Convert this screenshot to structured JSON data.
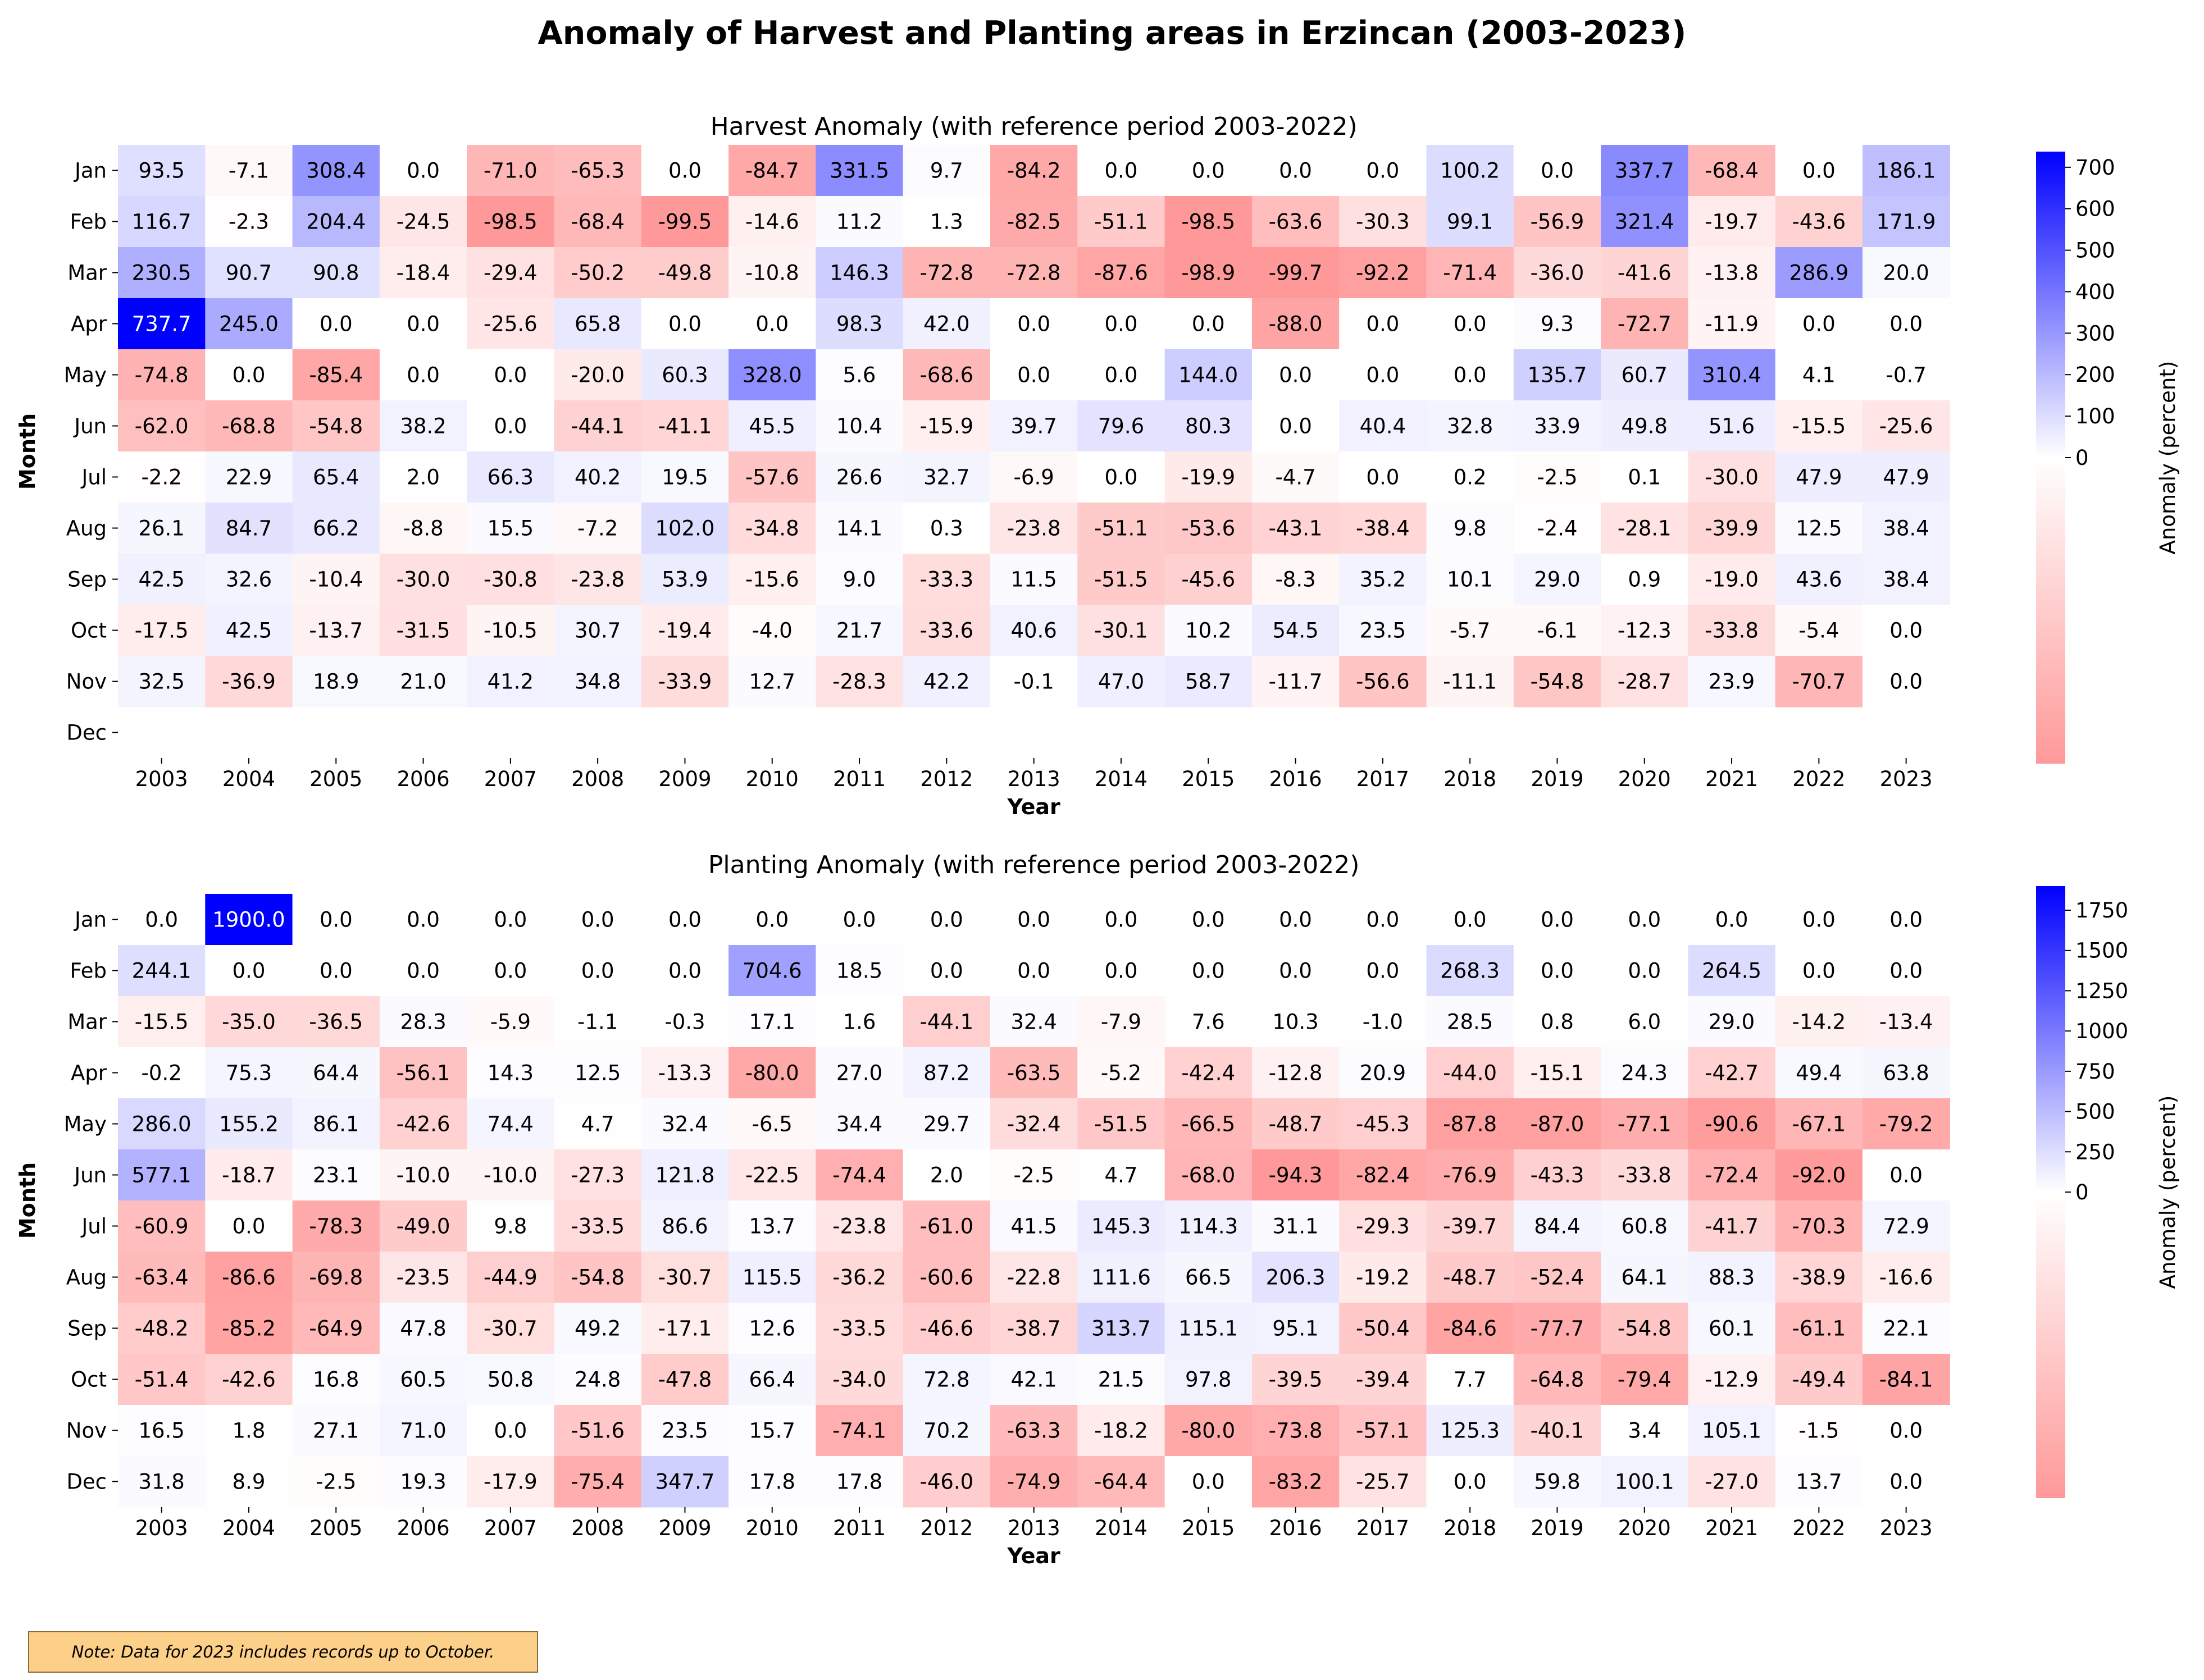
{
  "figure": {
    "title": "Anomaly of Harvest and Planting areas in Erzincan (2003-2023)",
    "note": "Note: Data for 2023 includes records up to October."
  },
  "chart_data": [
    {
      "type": "heatmap",
      "title": "Harvest Anomaly (with reference period 2003-2022)",
      "xlabel": "Year",
      "ylabel": "Month",
      "colorbar_label": "Anomaly (percent)",
      "colormap": [
        "#ff9999",
        "#ffffff",
        "#0000ff"
      ],
      "colorbar_range": [
        -98.9,
        737.7
      ],
      "colorbar_ticks": [
        0,
        100,
        200,
        300,
        400,
        500,
        600,
        700
      ],
      "x": [
        "2003",
        "2004",
        "2005",
        "2006",
        "2007",
        "2008",
        "2009",
        "2010",
        "2011",
        "2012",
        "2013",
        "2014",
        "2015",
        "2016",
        "2017",
        "2018",
        "2019",
        "2020",
        "2021",
        "2022",
        "2023"
      ],
      "y": [
        "Jan",
        "Feb",
        "Mar",
        "Apr",
        "May",
        "Jun",
        "Jul",
        "Aug",
        "Sep",
        "Oct",
        "Nov",
        "Dec"
      ],
      "values": [
        [
          93.5,
          -7.1,
          308.4,
          0.0,
          -71.0,
          -65.3,
          0.0,
          -84.7,
          331.5,
          9.7,
          -84.2,
          0.0,
          0.0,
          0.0,
          0.0,
          100.2,
          0.0,
          337.7,
          -68.4,
          0.0,
          186.1
        ],
        [
          116.7,
          -2.3,
          204.4,
          -24.5,
          -98.5,
          -68.4,
          -99.5,
          -14.6,
          11.2,
          1.3,
          -82.5,
          -51.1,
          -98.5,
          -63.6,
          -30.3,
          99.1,
          -56.9,
          321.4,
          -19.7,
          -43.6,
          171.9
        ],
        [
          230.5,
          90.7,
          90.8,
          -18.4,
          -29.4,
          -50.2,
          -49.8,
          -10.8,
          146.3,
          -72.8,
          -72.8,
          -87.6,
          -98.9,
          -99.7,
          -92.2,
          -71.4,
          -36.0,
          -41.6,
          -13.8,
          286.9,
          20.0
        ],
        [
          737.7,
          245.0,
          0.0,
          0.0,
          -25.6,
          65.8,
          0.0,
          0.0,
          98.3,
          42.0,
          0.0,
          0.0,
          0.0,
          -88.0,
          0.0,
          0.0,
          9.3,
          -72.7,
          -11.9,
          0.0,
          0.0
        ],
        [
          -74.8,
          0.0,
          -85.4,
          0.0,
          0.0,
          -20.0,
          60.3,
          328.0,
          5.6,
          -68.6,
          0.0,
          0.0,
          144.0,
          0.0,
          0.0,
          0.0,
          135.7,
          60.7,
          310.4,
          4.1,
          -0.7
        ],
        [
          -62.0,
          -68.8,
          -54.8,
          38.2,
          0.0,
          -44.1,
          -41.1,
          45.5,
          10.4,
          -15.9,
          39.7,
          79.6,
          80.3,
          0.0,
          40.4,
          32.8,
          33.9,
          49.8,
          51.6,
          -15.5,
          -25.6
        ],
        [
          -2.2,
          22.9,
          65.4,
          2.0,
          66.3,
          40.2,
          19.5,
          -57.6,
          26.6,
          32.7,
          -6.9,
          0.0,
          -19.9,
          -4.7,
          0.0,
          0.2,
          -2.5,
          0.1,
          -30.0,
          47.9,
          47.9
        ],
        [
          26.1,
          84.7,
          66.2,
          -8.8,
          15.5,
          -7.2,
          102.0,
          -34.8,
          14.1,
          0.3,
          -23.8,
          -51.1,
          -53.6,
          -43.1,
          -38.4,
          9.8,
          -2.4,
          -28.1,
          -39.9,
          12.5,
          38.4
        ],
        [
          42.5,
          32.6,
          -10.4,
          -30.0,
          -30.8,
          -23.8,
          53.9,
          -15.6,
          9.0,
          -33.3,
          11.5,
          -51.5,
          -45.6,
          -8.3,
          35.2,
          10.1,
          29.0,
          0.9,
          -19.0,
          43.6,
          38.4
        ],
        [
          -17.5,
          42.5,
          -13.7,
          -31.5,
          -10.5,
          30.7,
          -19.4,
          -4.0,
          21.7,
          -33.6,
          40.6,
          -30.1,
          10.2,
          54.5,
          23.5,
          -5.7,
          -6.1,
          -12.3,
          -33.8,
          -5.4,
          0.0
        ],
        [
          32.5,
          -36.9,
          18.9,
          21.0,
          41.2,
          34.8,
          -33.9,
          12.7,
          -28.3,
          42.2,
          -0.1,
          47.0,
          58.7,
          -11.7,
          -56.6,
          -11.1,
          -54.8,
          -28.7,
          23.9,
          -70.7,
          0.0
        ],
        [
          null,
          null,
          null,
          null,
          null,
          null,
          null,
          null,
          null,
          null,
          null,
          null,
          null,
          null,
          null,
          null,
          null,
          null,
          null,
          null,
          null
        ]
      ]
    },
    {
      "type": "heatmap",
      "title": "Planting Anomaly (with reference period 2003-2022)",
      "xlabel": "Year",
      "ylabel": "Month",
      "colorbar_label": "Anomaly (percent)",
      "colormap": [
        "#ff9999",
        "#ffffff",
        "#0000ff"
      ],
      "colorbar_range": [
        -94.3,
        1900.0
      ],
      "colorbar_ticks": [
        0,
        250,
        500,
        750,
        1000,
        1250,
        1500,
        1750
      ],
      "x": [
        "2003",
        "2004",
        "2005",
        "2006",
        "2007",
        "2008",
        "2009",
        "2010",
        "2011",
        "2012",
        "2013",
        "2014",
        "2015",
        "2016",
        "2017",
        "2018",
        "2019",
        "2020",
        "2021",
        "2022",
        "2023"
      ],
      "y": [
        "Jan",
        "Feb",
        "Mar",
        "Apr",
        "May",
        "Jun",
        "Jul",
        "Aug",
        "Sep",
        "Oct",
        "Nov",
        "Dec"
      ],
      "values": [
        [
          0.0,
          1900.0,
          0.0,
          0.0,
          0.0,
          0.0,
          0.0,
          0.0,
          0.0,
          0.0,
          0.0,
          0.0,
          0.0,
          0.0,
          0.0,
          0.0,
          0.0,
          0.0,
          0.0,
          0.0,
          0.0
        ],
        [
          244.1,
          0.0,
          0.0,
          0.0,
          0.0,
          0.0,
          0.0,
          704.6,
          18.5,
          0.0,
          0.0,
          0.0,
          0.0,
          0.0,
          0.0,
          268.3,
          0.0,
          0.0,
          264.5,
          0.0,
          0.0
        ],
        [
          -15.5,
          -35.0,
          -36.5,
          28.3,
          -5.9,
          -1.1,
          -0.3,
          17.1,
          1.6,
          -44.1,
          32.4,
          -7.9,
          7.6,
          10.3,
          -1.0,
          28.5,
          0.8,
          6.0,
          29.0,
          -14.2,
          -13.4
        ],
        [
          -0.2,
          75.3,
          64.4,
          -56.1,
          14.3,
          12.5,
          -13.3,
          -80.0,
          27.0,
          87.2,
          -63.5,
          -5.2,
          -42.4,
          -12.8,
          20.9,
          -44.0,
          -15.1,
          24.3,
          -42.7,
          49.4,
          63.8
        ],
        [
          286.0,
          155.2,
          86.1,
          -42.6,
          74.4,
          4.7,
          32.4,
          -6.5,
          34.4,
          29.7,
          -32.4,
          -51.5,
          -66.5,
          -48.7,
          -45.3,
          -87.8,
          -87.0,
          -77.1,
          -90.6,
          -67.1,
          -79.2
        ],
        [
          577.1,
          -18.7,
          23.1,
          -10.0,
          -10.0,
          -27.3,
          121.8,
          -22.5,
          -74.4,
          2.0,
          -2.5,
          4.7,
          -68.0,
          -94.3,
          -82.4,
          -76.9,
          -43.3,
          -33.8,
          -72.4,
          -92.0,
          0.0
        ],
        [
          -60.9,
          0.0,
          -78.3,
          -49.0,
          9.8,
          -33.5,
          86.6,
          13.7,
          -23.8,
          -61.0,
          41.5,
          145.3,
          114.3,
          31.1,
          -29.3,
          -39.7,
          84.4,
          60.8,
          -41.7,
          -70.3,
          72.9
        ],
        [
          -63.4,
          -86.6,
          -69.8,
          -23.5,
          -44.9,
          -54.8,
          -30.7,
          115.5,
          -36.2,
          -60.6,
          -22.8,
          111.6,
          66.5,
          206.3,
          -19.2,
          -48.7,
          -52.4,
          64.1,
          88.3,
          -38.9,
          -16.6
        ],
        [
          -48.2,
          -85.2,
          -64.9,
          47.8,
          -30.7,
          49.2,
          -17.1,
          12.6,
          -33.5,
          -46.6,
          -38.7,
          313.7,
          115.1,
          95.1,
          -50.4,
          -84.6,
          -77.7,
          -54.8,
          60.1,
          -61.1,
          22.1
        ],
        [
          -51.4,
          -42.6,
          16.8,
          60.5,
          50.8,
          24.8,
          -47.8,
          66.4,
          -34.0,
          72.8,
          42.1,
          21.5,
          97.8,
          -39.5,
          -39.4,
          7.7,
          -64.8,
          -79.4,
          -12.9,
          -49.4,
          -84.1
        ],
        [
          16.5,
          1.8,
          27.1,
          71.0,
          -0.0,
          -51.6,
          23.5,
          15.7,
          -74.1,
          70.2,
          -63.3,
          -18.2,
          -80.0,
          -73.8,
          -57.1,
          125.3,
          -40.1,
          3.4,
          105.1,
          -1.5,
          0.0
        ],
        [
          31.8,
          8.9,
          -2.5,
          19.3,
          -17.9,
          -75.4,
          347.7,
          17.8,
          17.8,
          -46.0,
          -74.9,
          -64.4,
          0.0,
          -83.2,
          -25.7,
          0.0,
          59.8,
          100.1,
          -27.0,
          13.7,
          0.0
        ]
      ]
    }
  ]
}
